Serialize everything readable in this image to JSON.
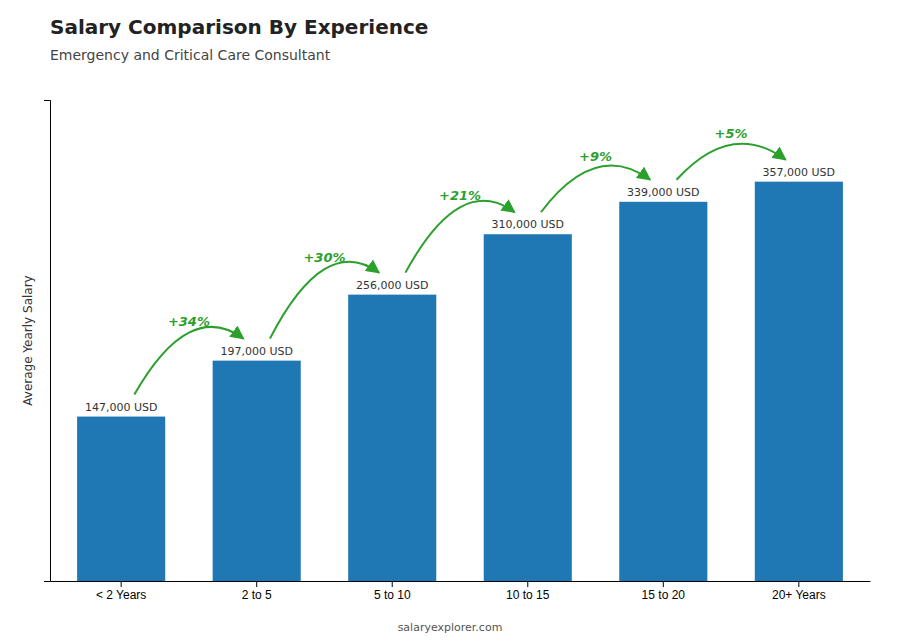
{
  "chart_data": {
    "type": "bar",
    "title": "Salary Comparison By Experience",
    "subtitle": "Emergency and Critical Care Consultant",
    "categories": [
      "< 2 Years",
      "2 to 5",
      "5 to 10",
      "10 to 15",
      "15 to 20",
      "20+ Years"
    ],
    "values": [
      147000,
      197000,
      256000,
      310000,
      339000,
      357000
    ],
    "value_labels": [
      "147,000 USD",
      "197,000 USD",
      "256,000 USD",
      "310,000 USD",
      "339,000 USD",
      "357,000 USD"
    ],
    "data_labels": true,
    "ylabel": "Average Yearly Salary",
    "ylim": [
      0,
      430000
    ],
    "yticks": [],
    "tick_labels": "x",
    "annotations": [
      "+34%",
      "+30%",
      "+21%",
      "+9%",
      "+5%"
    ],
    "watermark": "salaryexplorer.com"
  }
}
